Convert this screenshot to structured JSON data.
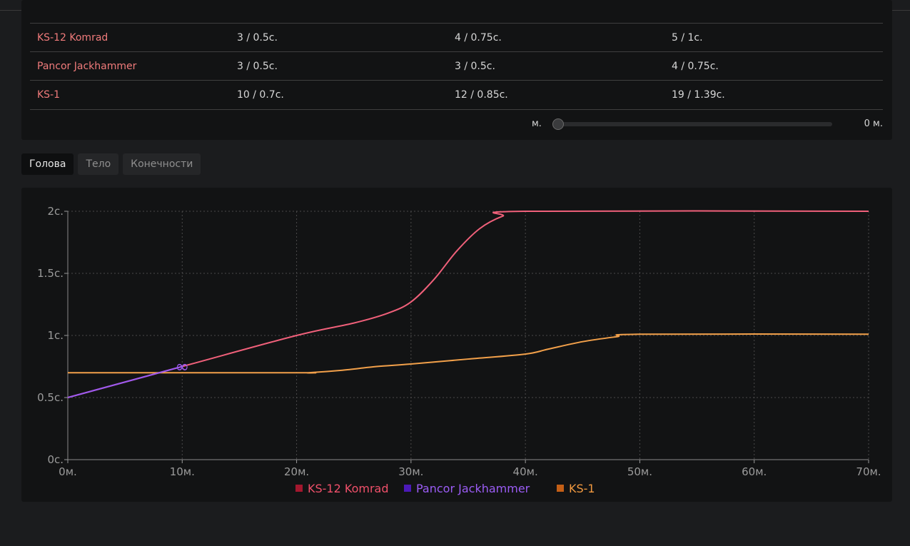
{
  "table": {
    "rows": [
      {
        "name": "KS-12 Komrad",
        "c1": "3 / 0.5с.",
        "c2": "4 / 0.75с.",
        "c3": "5 / 1с."
      },
      {
        "name": "Pancor Jackhammer",
        "c1": "3 / 0.5с.",
        "c2": "3 / 0.5с.",
        "c3": "4 / 0.75с."
      },
      {
        "name": "KS-1",
        "c1": "10 / 0.7с.",
        "c2": "12 / 0.85с.",
        "c3": "19 / 1.39с."
      }
    ]
  },
  "slider": {
    "label": "м.",
    "value": "0 м.",
    "level": 0
  },
  "tabs": [
    {
      "label": "Голова",
      "active": true
    },
    {
      "label": "Тело",
      "active": false
    },
    {
      "label": "Конечности",
      "active": false
    }
  ],
  "colors": {
    "ks12": "#f0607a",
    "pancor": "#9b59f0",
    "ks1": "#f2a04a",
    "ks12_legend_box": "#a3172e",
    "pancor_legend_box": "#4b19b8",
    "ks1_legend_box": "#c45f16",
    "ks12_legend_text": "#f0506a",
    "pancor_legend_text": "#9b5cf5",
    "ks1_legend_text": "#f29a40"
  },
  "chart_data": {
    "type": "line",
    "x_ticks": [
      "0м.",
      "10м.",
      "20м.",
      "30м.",
      "40м.",
      "50м.",
      "60м.",
      "70м."
    ],
    "y_ticks": [
      "0с.",
      "0.5с.",
      "1с.",
      "1.5с.",
      "2с."
    ],
    "xlim": [
      0,
      70
    ],
    "ylim": [
      0,
      2
    ],
    "grid": true,
    "legend_position": "bottom",
    "marker_at": [
      10,
      0.75
    ],
    "marker_symbol": "∞",
    "series": [
      {
        "name": "KS-12 Komrad",
        "color_key": "ks12",
        "points": [
          [
            0,
            0.5
          ],
          [
            10,
            0.75
          ],
          [
            20,
            1.0
          ],
          [
            25,
            1.1
          ],
          [
            28,
            1.18
          ],
          [
            30,
            1.27
          ],
          [
            32,
            1.45
          ],
          [
            34,
            1.68
          ],
          [
            36,
            1.86
          ],
          [
            38,
            1.96
          ],
          [
            40,
            2.0
          ],
          [
            70,
            2.0
          ]
        ]
      },
      {
        "name": "Pancor Jackhammer",
        "color_key": "pancor",
        "points": [
          [
            0,
            0.5
          ],
          [
            10,
            0.75
          ]
        ]
      },
      {
        "name": "KS-1",
        "color_key": "ks1",
        "points": [
          [
            0,
            0.7
          ],
          [
            20,
            0.7
          ],
          [
            21,
            0.7
          ],
          [
            24,
            0.72
          ],
          [
            27,
            0.75
          ],
          [
            30,
            0.77
          ],
          [
            35,
            0.81
          ],
          [
            40,
            0.85
          ],
          [
            42,
            0.89
          ],
          [
            45,
            0.95
          ],
          [
            48,
            0.99
          ],
          [
            50,
            1.01
          ],
          [
            70,
            1.01
          ]
        ]
      }
    ]
  }
}
